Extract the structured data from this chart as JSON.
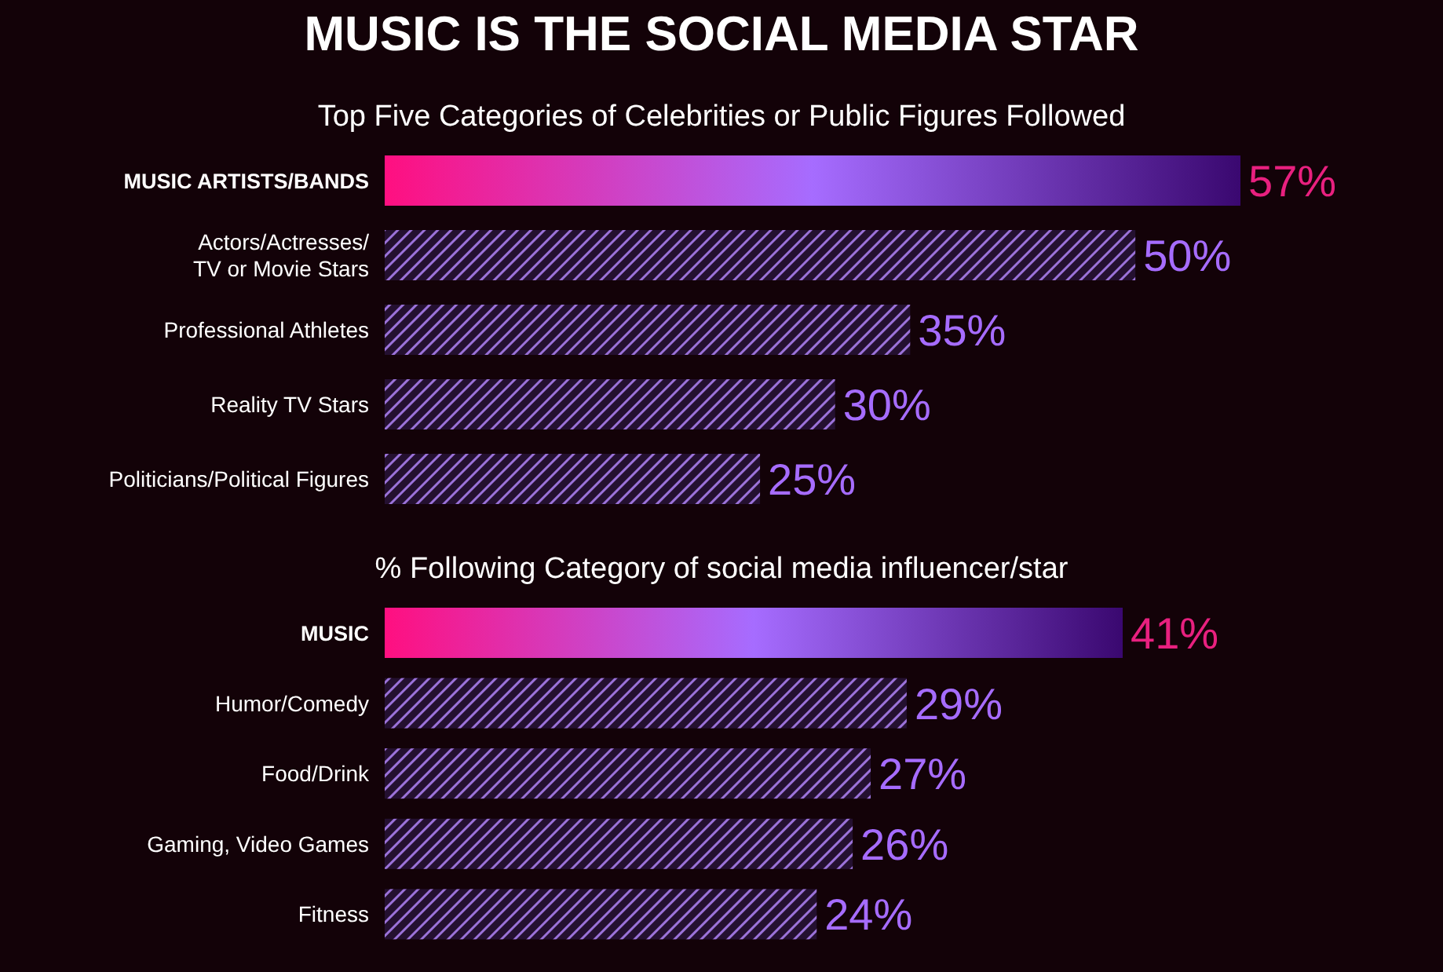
{
  "chart_data": [
    {
      "type": "bar",
      "orientation": "horizontal",
      "title": "MUSIC IS THE SOCIAL MEDIA STAR",
      "subtitle": "Top Five Categories of Celebrities or Public Figures Followed",
      "categories": [
        "MUSIC ARTISTS/BANDS",
        "Actors/Actresses/ TV or Movie Stars",
        "Professional Athletes",
        "Reality TV Stars",
        "Politicians/Political Figures"
      ],
      "values": [
        57,
        50,
        35,
        30,
        25
      ],
      "value_labels": [
        "57%",
        "50%",
        "35%",
        "30%",
        "25%"
      ],
      "colors": [
        "#a66cff",
        "#9b72d9",
        "#9b72d9",
        "#9b72d9",
        "#9b72d9"
      ]
    },
    {
      "type": "bar",
      "orientation": "horizontal",
      "subtitle": "% Following Category of social media influencer/star",
      "categories": [
        "MUSIC",
        "Humor/Comedy",
        "Food/Drink",
        "Gaming, Video Games",
        "Fitness"
      ],
      "values": [
        41,
        29,
        27,
        26,
        24
      ],
      "value_labels": [
        "41%",
        "29%",
        "27%",
        "26%",
        "24%"
      ],
      "colors": [
        "#a66cff",
        "#9b72d9",
        "#9b72d9",
        "#9b72d9",
        "#9b72d9"
      ]
    }
  ]
}
